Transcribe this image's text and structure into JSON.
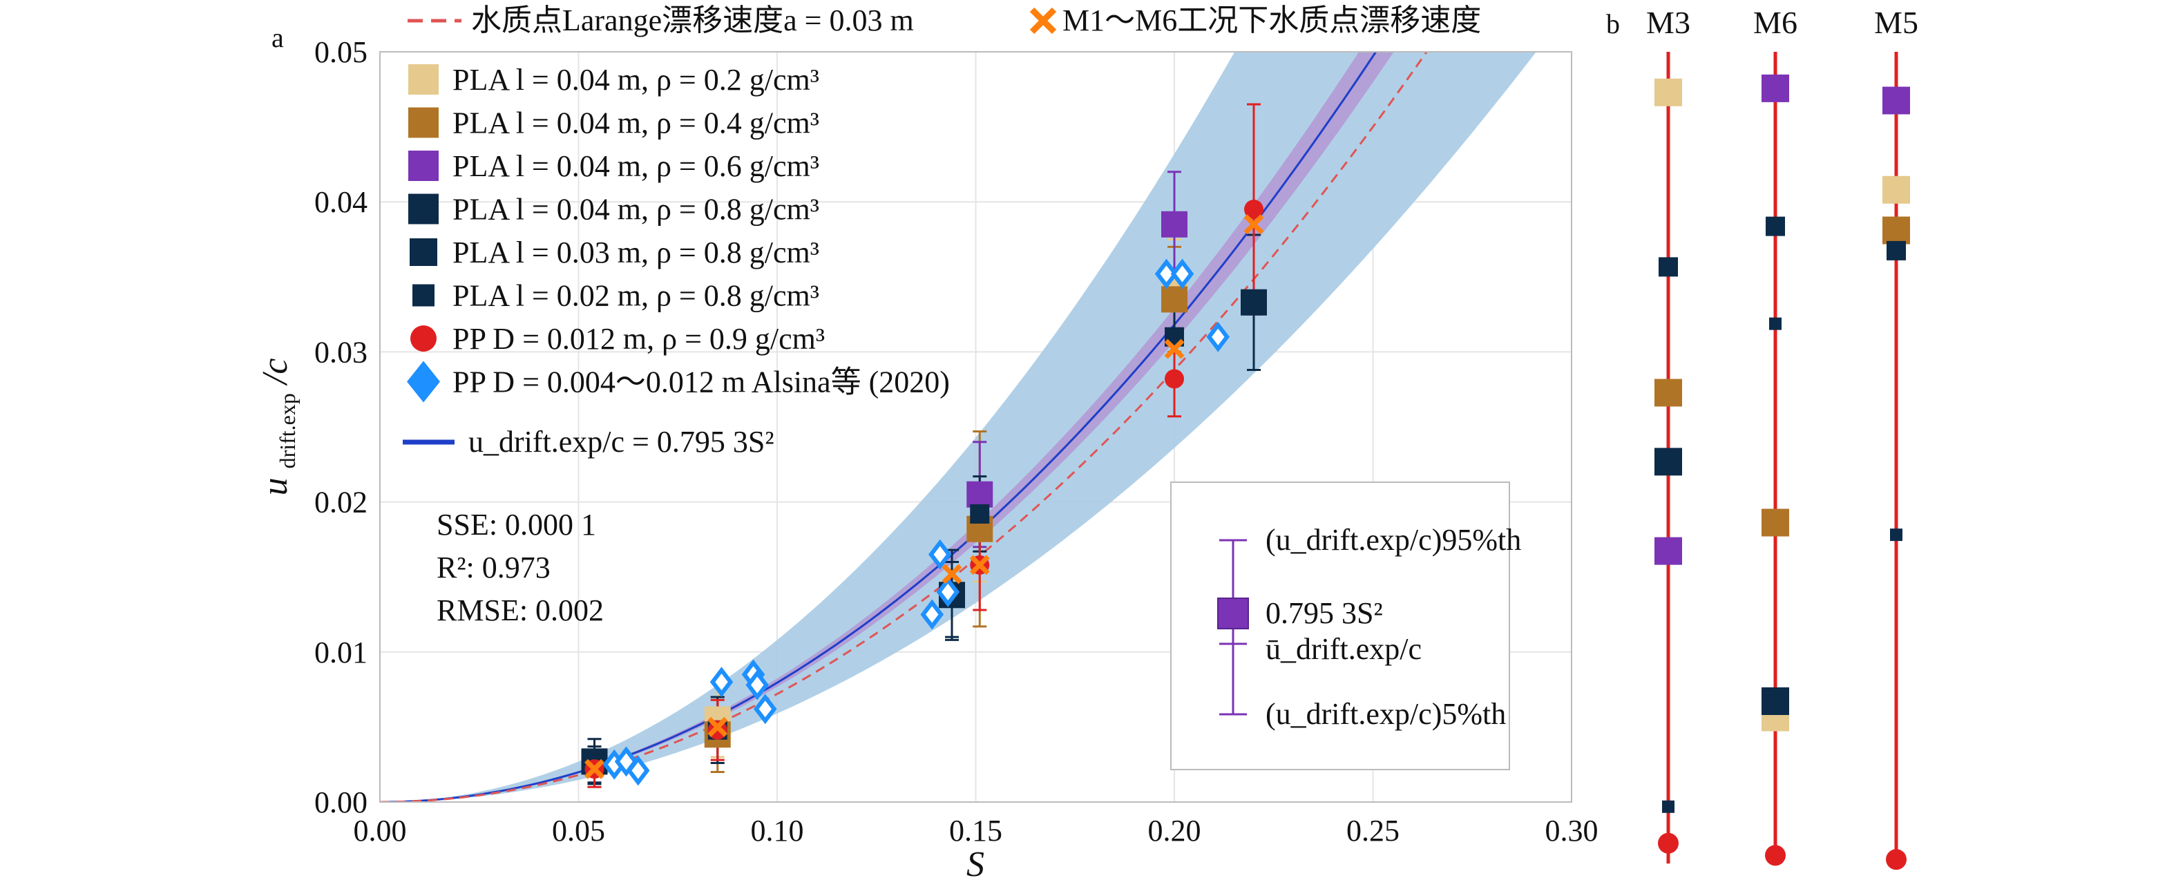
{
  "chart_data": [
    {
      "panel": "a",
      "type": "scatter",
      "xlabel": "S",
      "ylabel": "u_drift.exp/c",
      "xlim": [
        0,
        0.3
      ],
      "ylim": [
        0,
        0.05
      ],
      "x_ticks": [
        "0.00",
        "0.05",
        "0.10",
        "0.15",
        "0.20",
        "0.25",
        "0.30"
      ],
      "y_ticks": [
        "0.00",
        "0.01",
        "0.02",
        "0.03",
        "0.04",
        "0.05"
      ],
      "grid": true,
      "fit": {
        "label": "u_drift.exp/c = 0.795 3S²",
        "coef": 0.7953,
        "band_lower_coef": 0.59,
        "band_upper_coef": 1.08
      },
      "lagrange_curve": {
        "label": "水质点Larange漂移速度a = 0.03 m",
        "coef": 0.72
      },
      "stats": {
        "sse": "SSE: 0.000 1",
        "r2": "R²: 0.973",
        "rmse": "RMSE: 0.002"
      },
      "legend_top": [
        "水质点Larange漂移速度a = 0.03 m",
        "M1～M6工况下水质点漂移速度"
      ],
      "legend_box": {
        "upper": "(u_drift.exp/c)95%th",
        "middle": "0.795 3S²",
        "mean": "ū_drift.exp/c",
        "lower": "(u_drift.exp/c)5%th"
      },
      "series": [
        {
          "name": "PLA l = 0.04 m, ρ = 0.2 g/cm³",
          "color": "#e5c98d",
          "marker": "square-large",
          "points": [
            [
              0.085,
              0.0055,
              0.0025
            ],
            [
              0.151,
              0.0182,
              0.0035
            ],
            [
              0.2,
              0.0345,
              0.003
            ]
          ]
        },
        {
          "name": "PLA l = 0.04 m, ρ = 0.4 g/cm³",
          "color": "#b07426",
          "marker": "square-large",
          "points": [
            [
              0.085,
              0.0045,
              0.0025
            ],
            [
              0.151,
              0.0182,
              0.0065
            ],
            [
              0.2,
              0.0335,
              0.0035
            ]
          ]
        },
        {
          "name": "PLA l = 0.04 m, ρ = 0.6 g/cm³",
          "color": "#7b34b5",
          "marker": "square-large",
          "points": [
            [
              0.151,
              0.0205,
              0.0035
            ],
            [
              0.2,
              0.0385,
              0.0035
            ]
          ]
        },
        {
          "name": "PLA l = 0.04 m, ρ = 0.8 g/cm³",
          "color": "#0c2b48",
          "marker": "square-large",
          "points": [
            [
              0.054,
              0.0027,
              0.0015
            ],
            [
              0.144,
              0.0138,
              0.003
            ],
            [
              0.22,
              0.0333,
              0.0045
            ]
          ]
        },
        {
          "name": "PLA l = 0.03 m, ρ = 0.8 g/cm³",
          "color": "#0c2b48",
          "marker": "square-medium",
          "points": [
            [
              0.085,
              0.0048,
              0.0022
            ],
            [
              0.151,
              0.0192,
              0.0025
            ],
            [
              0.2,
              0.031,
              0.0025
            ]
          ]
        },
        {
          "name": "PLA l = 0.02 m, ρ = 0.8 g/cm³",
          "color": "#0c2b48",
          "marker": "square-small",
          "points": [
            [
              0.054,
              0.0025,
              0.0012
            ],
            [
              0.144,
              0.0135,
              0.0025
            ]
          ]
        },
        {
          "name": "PP D = 0.012 m, ρ = 0.9 g/cm³",
          "color": "#e02020",
          "marker": "circle",
          "points": [
            [
              0.054,
              0.0022,
              0.0012
            ],
            [
              0.085,
              0.0048,
              0.002
            ],
            [
              0.151,
              0.0158,
              0.003
            ],
            [
              0.2,
              0.0282,
              0.0025
            ],
            [
              0.22,
              0.0395,
              0.007
            ]
          ]
        },
        {
          "name": "PP D = 0.004～0.012 m Alsina等 (2020)",
          "color": "#1e90ff",
          "marker": "diamond",
          "points": [
            [
              0.059,
              0.0025
            ],
            [
              0.062,
              0.0027
            ],
            [
              0.065,
              0.0021
            ],
            [
              0.086,
              0.008
            ],
            [
              0.094,
              0.0085
            ],
            [
              0.095,
              0.0078
            ],
            [
              0.097,
              0.0062
            ],
            [
              0.139,
              0.0125
            ],
            [
              0.141,
              0.0165
            ],
            [
              0.143,
              0.014
            ],
            [
              0.198,
              0.0352
            ],
            [
              0.202,
              0.0352
            ],
            [
              0.211,
              0.031
            ]
          ]
        }
      ],
      "orange_crosses": [
        [
          0.054,
          0.0022
        ],
        [
          0.085,
          0.005
        ],
        [
          0.144,
          0.0152
        ],
        [
          0.151,
          0.0158
        ],
        [
          0.2,
          0.0302
        ],
        [
          0.22,
          0.0385
        ]
      ]
    },
    {
      "panel": "b",
      "type": "scatter",
      "columns": [
        {
          "name": "M3",
          "line_color": "#e02020",
          "markers": [
            {
              "color": "#e5c98d",
              "size": "large",
              "pos": 0.05
            },
            {
              "color": "#0c2b48",
              "size": "medium",
              "pos": 0.265
            },
            {
              "color": "#b07426",
              "size": "large",
              "pos": 0.42
            },
            {
              "color": "#0c2b48",
              "size": "large",
              "pos": 0.505
            },
            {
              "color": "#7b34b5",
              "size": "large",
              "pos": 0.615
            },
            {
              "color": "#0c2b48",
              "size": "small",
              "pos": 0.93
            },
            {
              "color": "#e02020",
              "size": "circle",
              "pos": 0.975
            }
          ]
        },
        {
          "name": "M6",
          "line_color": "#e02020",
          "markers": [
            {
              "color": "#7b34b5",
              "size": "large",
              "pos": 0.045
            },
            {
              "color": "#0c2b48",
              "size": "medium",
              "pos": 0.215
            },
            {
              "color": "#0c2b48",
              "size": "small",
              "pos": 0.335
            },
            {
              "color": "#b07426",
              "size": "large",
              "pos": 0.58
            },
            {
              "color": "#e5c98d",
              "size": "large",
              "pos": 0.82
            },
            {
              "color": "#0c2b48",
              "size": "large",
              "pos": 0.8
            },
            {
              "color": "#e02020",
              "size": "circle",
              "pos": 0.99
            }
          ]
        },
        {
          "name": "M5",
          "line_color": "#e02020",
          "markers": [
            {
              "color": "#7b34b5",
              "size": "large",
              "pos": 0.06
            },
            {
              "color": "#e5c98d",
              "size": "large",
              "pos": 0.17
            },
            {
              "color": "#b07426",
              "size": "large",
              "pos": 0.22
            },
            {
              "color": "#0c2b48",
              "size": "medium",
              "pos": 0.245
            },
            {
              "color": "#0c2b48",
              "size": "small",
              "pos": 0.595
            },
            {
              "color": "#e02020",
              "size": "circle",
              "pos": 0.995
            }
          ]
        }
      ]
    }
  ],
  "labels": {
    "panel_a": "a",
    "panel_b": "b",
    "ylabel_main": "u",
    "ylabel_sub": "drift.exp",
    "ylabel_tail": "/c",
    "xlabel": "S"
  }
}
